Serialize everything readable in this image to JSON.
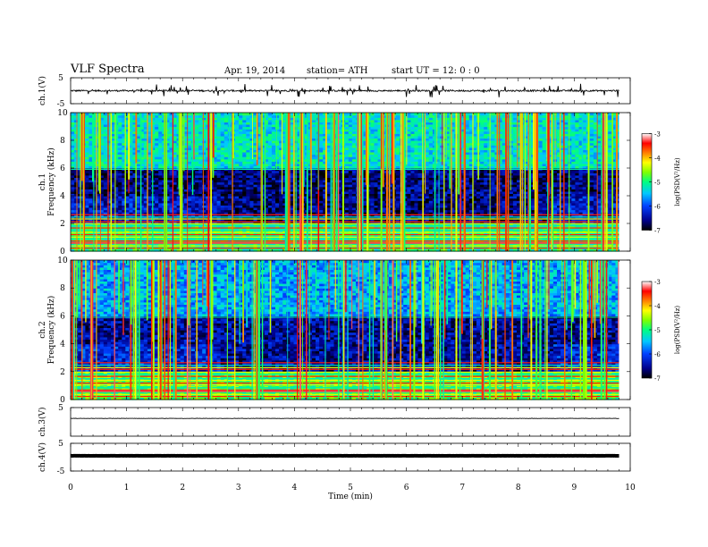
{
  "header": {
    "title": "VLF  Spectra",
    "date": "Apr. 19, 2014",
    "station": "station= ATH",
    "start": "start  UT  =    12: 0   : 0"
  },
  "colors": {
    "spectrogram_scale": [
      "#000000",
      "#00008b",
      "#0040ff",
      "#00c8ff",
      "#00ff80",
      "#80ff00",
      "#ffff00",
      "#ff8000",
      "#ff0000",
      "#ffffff"
    ]
  },
  "chart_data": [
    {
      "type": "line",
      "panel": "ch1-waveform",
      "ylabel": "ch.1(V)",
      "ylim": [
        -5,
        5
      ],
      "ytick_labels": [
        "5",
        "-5"
      ],
      "baseline": 0,
      "noise_amplitude": 0.6,
      "spike_amplitude": 2.5
    },
    {
      "type": "heatmap",
      "panel": "ch1-spectrogram",
      "ylabel": "ch.1\nFrequency  (kHz)",
      "ylim": [
        0,
        10
      ],
      "ytick_labels": [
        "0",
        "2",
        "4",
        "6",
        "8",
        "10"
      ],
      "colorbar": {
        "label": "log(PSD(V²/Hz)",
        "range": [
          -7,
          -3
        ],
        "tick_labels": [
          "-3",
          "-4",
          "-5",
          "-6",
          "-7"
        ]
      },
      "background_log_psd": {
        "0-2kHz": -5,
        "2-4kHz": -6.3,
        "4-6kHz": -6.6,
        "6-10kHz": -5.3
      },
      "regime_change_min": [
        2.7,
        4.1,
        8.6
      ]
    },
    {
      "type": "heatmap",
      "panel": "ch2-spectrogram",
      "ylabel": "ch.2\nFrequency  (kHz)",
      "ylim": [
        0,
        10
      ],
      "ytick_labels": [
        "0",
        "2",
        "4",
        "6",
        "8",
        "10"
      ],
      "colorbar": {
        "label": "log(PSD(V²/Hz)",
        "range": [
          -7,
          -3
        ],
        "tick_labels": [
          "-3",
          "-4",
          "-5",
          "-6",
          "-7"
        ]
      },
      "background_log_psd": {
        "0-2kHz": -4.8,
        "2-4kHz": -6.2,
        "4-6kHz": -6.5,
        "6-10kHz": -5.6
      },
      "regime_change_min": [
        2.7,
        4.1,
        8.6
      ]
    },
    {
      "type": "line",
      "panel": "ch3-waveform",
      "ylabel": "ch.3(V)",
      "ylim": [
        -5,
        5
      ],
      "ytick_labels": [
        "5"
      ],
      "baseline": 1.2,
      "noise_amplitude": 0.1
    },
    {
      "type": "line",
      "panel": "ch4-waveform",
      "ylabel": "ch.4(V)",
      "ylim": [
        -5,
        5
      ],
      "ytick_labels": [
        "5",
        "-5"
      ],
      "baseline": 0.5,
      "noise_amplitude": 0.05
    }
  ],
  "x_axis": {
    "label": "Time  (min)",
    "range": [
      0,
      10
    ],
    "data_end_min": 9.8,
    "tick_labels": [
      "0",
      "1",
      "2",
      "3",
      "4",
      "5",
      "6",
      "7",
      "8",
      "9",
      "10"
    ]
  }
}
